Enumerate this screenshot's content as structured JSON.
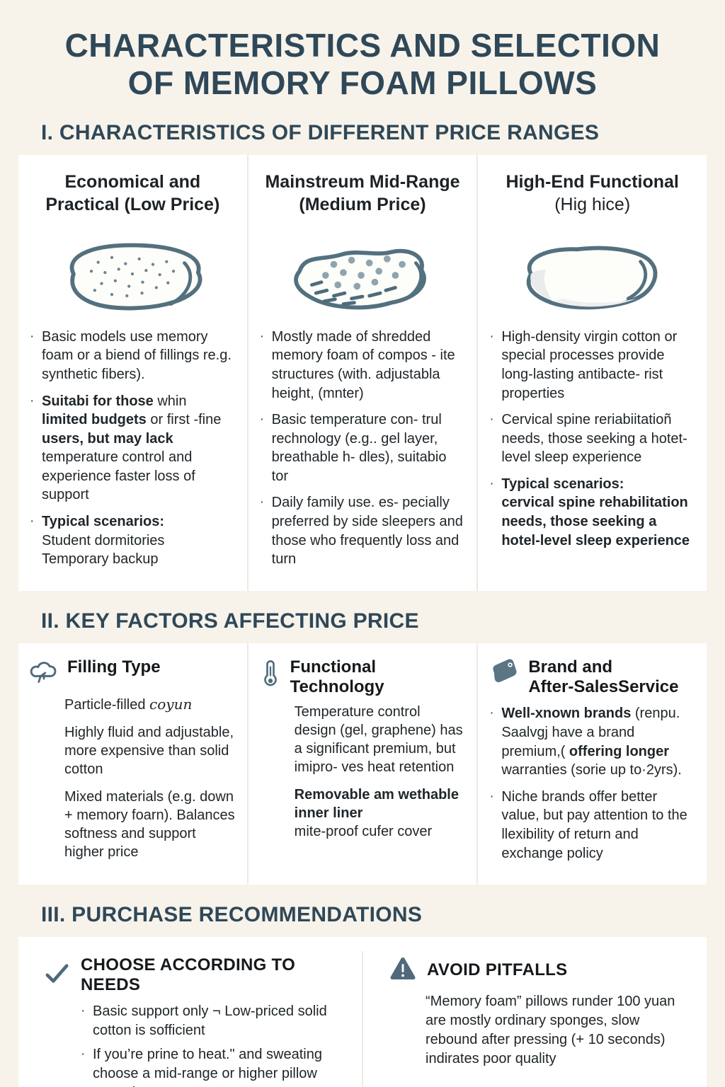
{
  "page": {
    "title_line1": "CHARACTERISTICS AND SELECTION",
    "title_line2": "OF MEMORY FOAM PILLOWS"
  },
  "colors": {
    "background": "#f7f3ea",
    "card": "#ffffff",
    "heading_navy": "#2f4859",
    "body_ink": "#20262a",
    "icon_slate": "#4e6b7c",
    "divider": "#edeae2"
  },
  "section1": {
    "heading": "I. CHARACTERISTICS OF DIFFERENT PRICE RANGES",
    "columns": [
      {
        "icon": "pillow-dotted-icon",
        "header": [
          {
            "t": "Economical and Practical (Low Price)",
            "b": true
          }
        ],
        "bullets": [
          [
            {
              "t": "Basic models use memory foam or a biend of fillings re.g. synthetic fibers)."
            }
          ],
          [
            {
              "t": "Suitabi for those",
              "b": true
            },
            {
              "t": " whin "
            },
            {
              "t": "limited budgets",
              "b": true
            },
            {
              "t": " or first -fine "
            },
            {
              "t": "users, but may lack",
              "b": true
            },
            {
              "t": " temperature control and experience faster loss of support"
            }
          ],
          [
            {
              "t": "Typical scenarios:",
              "b": true
            },
            {
              "t": "\nStudent dormitories\nTemporary backup"
            }
          ]
        ]
      },
      {
        "icon": "pillow-shredded-icon",
        "header": [
          {
            "t": "Mainstreum Mid-Range (Medium Price)",
            "b": true
          }
        ],
        "bullets": [
          [
            {
              "t": "Mostly made of shredded memory foam of compos - ite structures (with. adjustabla height, (mnter)"
            }
          ],
          [
            {
              "t": "Basic temperature con- trul rechnology (e.g.. gel layer, breathable h- dles), suitabio tor"
            }
          ],
          [
            {
              "t": "Daily family use. es- pecially preferred by side sleepers and those who frequently loss and turn"
            }
          ]
        ]
      },
      {
        "icon": "pillow-contour-icon",
        "header": [
          {
            "t": "High-End Functional",
            "b": true
          },
          {
            "t": " (Hig hice)"
          }
        ],
        "bullets": [
          [
            {
              "t": "High-density virgin cotton or special processes provide long-lasting antibacte- rist properties"
            }
          ],
          [
            {
              "t": "Cervical spine reriabiitatioñ needs, those seeking a hotet-level sleep experience"
            }
          ],
          [
            {
              "t": "Typical scenarios:",
              "b": true
            },
            {
              "t": "\ncervical spine rehabilitation needs, those seeking a hotel-level sleep experience",
              "m": true
            }
          ]
        ]
      }
    ]
  },
  "section2": {
    "heading": "II. KEY FACTORS AFFECTING PRICE",
    "columns": [
      {
        "icon": "cotton-icon",
        "title": "Filling Type",
        "paragraphs": [
          [
            {
              "t": "Particle-filled "
            },
            {
              "t": "coyun",
              "i": true
            }
          ],
          [
            {
              "t": "Highly fluid and adjustable, more expensive than solid cotton"
            }
          ],
          [
            {
              "t": "Mixed materials (e.g. down + memory foarn). Balances softness and support higher price"
            }
          ]
        ]
      },
      {
        "icon": "thermometer-icon",
        "title": "Functional\nTechnology",
        "paragraphs": [
          [
            {
              "t": "Temperature control design (gel, graphene) has a significant premium, but imipro- ves heat retention"
            }
          ],
          [
            {
              "t": "Removable am wethable inner liner",
              "b": true
            },
            {
              "t": "\nmite-proof cufer cover"
            }
          ]
        ]
      },
      {
        "icon": "price-tag-icon",
        "title": "Brand and\nAfter-SalesService",
        "bullets": [
          [
            {
              "t": "Well-xnown brands",
              "b": true
            },
            {
              "t": " (renpu. Saalvgj have a brand premium,( "
            },
            {
              "t": "offering longer",
              "m": true
            },
            {
              "t": " warranties (sorie up to·2yrs)."
            }
          ],
          [
            {
              "t": "Niche brands offer better value, but pay attention to the llexibility of return and exchange policy"
            }
          ]
        ]
      }
    ]
  },
  "section3": {
    "heading": "III. PURCHASE RECOMMENDATIONS",
    "left": {
      "icon": "checkmark-icon",
      "title": "CHOOSE ACCORDING TO NEEDS",
      "bullets": [
        [
          {
            "t": "Basic support only ¬ Low-priced solid cotton is sofficient"
          }
        ],
        [
          {
            "t": "If you’re prine to heat.\" and sweating choose a mid-range or higher pillow control"
          }
        ]
      ]
    },
    "right": {
      "icon": "warning-icon",
      "title": "AVOID PITFALLS",
      "paragraph": [
        {
          "t": "“Memory foam” pillows runder 100 yuan are mostly ordinary sponges, slow rebound after pressing (+ 10 seconds) indirates poor quality"
        }
      ]
    }
  }
}
